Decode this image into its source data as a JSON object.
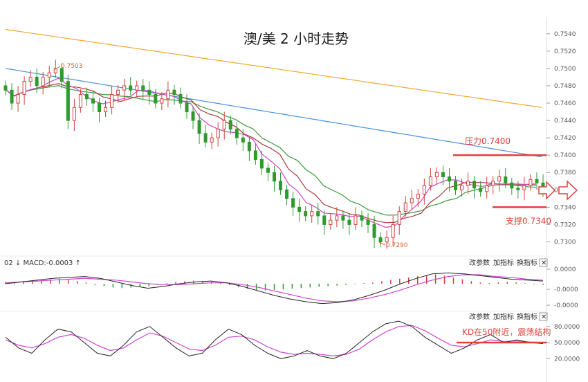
{
  "chart_data": [
    {
      "type": "candlestick",
      "title": "澳/美 2 小时走势",
      "ylim": [
        0.729,
        0.7555
      ],
      "yticks": [
        "0.7540",
        "0.7520",
        "0.7500",
        "0.7480",
        "0.7460",
        "0.7440",
        "0.7420",
        "0.7400",
        "0.7380",
        "0.7360",
        "0.7340",
        "0.7320",
        "0.7300"
      ],
      "yticks_values": [
        0.754,
        0.752,
        0.75,
        0.748,
        0.746,
        0.744,
        0.742,
        0.74,
        0.738,
        0.736,
        0.734,
        0.732,
        0.73
      ],
      "close_series": [
        0.7475,
        0.746,
        0.747,
        0.7485,
        0.749,
        0.748,
        0.749,
        0.7495,
        0.75,
        0.7485,
        0.744,
        0.7455,
        0.747,
        0.7465,
        0.746,
        0.745,
        0.7455,
        0.747,
        0.7475,
        0.748,
        0.7475,
        0.748,
        0.7475,
        0.747,
        0.746,
        0.7465,
        0.7475,
        0.747,
        0.746,
        0.745,
        0.744,
        0.7425,
        0.7415,
        0.742,
        0.743,
        0.744,
        0.743,
        0.742,
        0.7415,
        0.7405,
        0.7395,
        0.7385,
        0.738,
        0.737,
        0.736,
        0.735,
        0.734,
        0.7335,
        0.733,
        0.7335,
        0.733,
        0.732,
        0.7325,
        0.733,
        0.7325,
        0.732,
        0.733,
        0.7325,
        0.732,
        0.7305,
        0.73,
        0.7305,
        0.732,
        0.7335,
        0.7345,
        0.735,
        0.7355,
        0.7365,
        0.7375,
        0.738,
        0.7375,
        0.737,
        0.736,
        0.7365,
        0.737,
        0.7362,
        0.7358,
        0.7365,
        0.737,
        0.7375,
        0.7368,
        0.7362,
        0.736,
        0.7365,
        0.7372,
        0.7368,
        0.7362
      ],
      "moving_averages": [
        {
          "color": "#f0a830",
          "start": 0.7545,
          "end": 0.7455
        },
        {
          "color": "#4a90d9",
          "start": 0.75,
          "end": 0.7398
        },
        {
          "color": "#3a9a3a",
          "start": 0.7478,
          "end": 0.7348
        },
        {
          "color": "#a83a3a",
          "start": 0.7485,
          "end": 0.7365
        },
        {
          "color": "#cc44cc",
          "start": 0.748,
          "end": 0.7365
        }
      ],
      "resistance": {
        "value": 0.74,
        "label": "压力0.7400"
      },
      "support": {
        "value": 0.734,
        "label": "支撑0.7340"
      },
      "high_marker": "0.7503",
      "low_marker": "0.7290",
      "arrow_color": "#e0403a"
    },
    {
      "type": "macd",
      "header": "02 ↓ MACD:-0.0003 ↑",
      "yticks": [
        "0.0000",
        "-0.0000",
        "-0.0000"
      ],
      "histogram": [
        0.3,
        0.2,
        0.4,
        0.5,
        0.6,
        0.7,
        0.8,
        0.6,
        0.4,
        0.2,
        -0.2,
        -0.4,
        -0.6,
        -0.7,
        -0.6,
        -0.5,
        -0.4,
        -0.2,
        0.1,
        0.3,
        0.4,
        0.5,
        0.4,
        0.3,
        0.1,
        -0.2,
        -0.5,
        -0.8,
        -1.0,
        -1.1,
        -1.0,
        -0.9,
        -0.8,
        -0.7,
        -0.6,
        -0.5,
        -0.4,
        -0.3,
        -0.2,
        -0.1,
        0.1,
        0.2,
        0.4,
        0.6,
        0.8,
        1.0,
        1.2,
        1.4,
        1.5,
        1.3,
        1.0,
        0.7,
        0.4,
        0.2,
        0.1,
        0.2,
        0.3,
        0.2,
        0.1,
        -0.1,
        -0.2
      ],
      "macd_line": [
        0.0,
        0.2,
        0.4,
        0.6,
        0.7,
        0.8,
        0.6,
        0.2,
        -0.2,
        -0.5,
        -0.3,
        0.0,
        0.2,
        0.3,
        0.1,
        -0.3,
        -0.8,
        -1.3,
        -1.7,
        -2.0,
        -2.2,
        -2.1,
        -1.8,
        -1.3,
        -0.7,
        0.0,
        0.6,
        1.1,
        1.2,
        1.1,
        0.9,
        0.7,
        0.5,
        0.4,
        0.3
      ],
      "signal_line": [
        0.1,
        0.2,
        0.3,
        0.4,
        0.5,
        0.6,
        0.5,
        0.4,
        0.2,
        0.0,
        -0.1,
        -0.1,
        0.0,
        0.1,
        0.1,
        -0.1,
        -0.4,
        -0.8,
        -1.2,
        -1.6,
        -1.9,
        -2.0,
        -1.9,
        -1.6,
        -1.2,
        -0.7,
        -0.1,
        0.4,
        0.8,
        1.0,
        1.0,
        0.8,
        0.7,
        0.5,
        0.4
      ]
    },
    {
      "type": "kdj",
      "yticks": [
        "80.0000",
        "50.0000",
        "20.0000"
      ],
      "yticks_values": [
        80,
        50,
        20
      ],
      "k_line": [
        60,
        40,
        30,
        55,
        75,
        70,
        50,
        30,
        25,
        45,
        70,
        80,
        60,
        40,
        25,
        30,
        55,
        75,
        65,
        45,
        30,
        20,
        25,
        35,
        25,
        20,
        30,
        50,
        70,
        85,
        90,
        80,
        60,
        45,
        30,
        40,
        55,
        65,
        50,
        55,
        50,
        48
      ],
      "d_line": [
        55,
        45,
        40,
        48,
        60,
        65,
        58,
        45,
        35,
        40,
        55,
        68,
        62,
        50,
        38,
        35,
        45,
        60,
        62,
        55,
        42,
        32,
        28,
        30,
        28,
        25,
        28,
        38,
        55,
        70,
        80,
        82,
        72,
        58,
        45,
        42,
        48,
        55,
        52,
        53,
        51,
        50
      ],
      "annotation": "KD在50附近，震荡结构",
      "annotation_level": 50
    }
  ],
  "toolbar": {
    "params_label": "改参数",
    "add_indicator_label": "加指标",
    "switch_indicator_label": "换指标",
    "close_label": "✕"
  }
}
